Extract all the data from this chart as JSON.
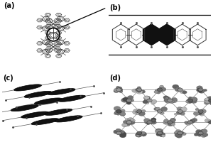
{
  "bg_color": "#ffffff",
  "panel_labels": [
    "(a)",
    "(b)",
    "(c)",
    "(d)"
  ],
  "label_fontsize": 7,
  "label_fontweight": "bold",
  "line_color": "#333333",
  "dark_color": "#111111",
  "mid_color": "#666666",
  "light_gray": "#aaaaaa"
}
